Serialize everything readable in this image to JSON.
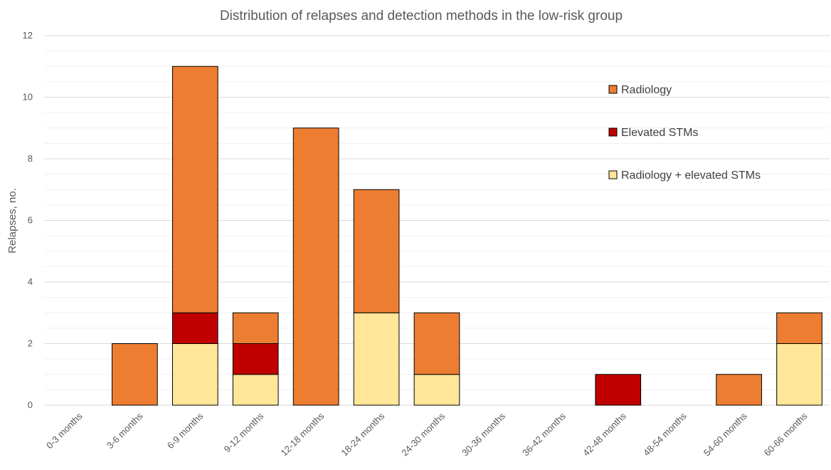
{
  "chart_data": {
    "type": "bar",
    "stacked": true,
    "title": "Distribution of relapses and detection methods in the low-risk group",
    "xlabel": "",
    "ylabel": "Relapses, no.",
    "ylim": [
      0,
      12
    ],
    "yticks": [
      0,
      2,
      4,
      6,
      8,
      10,
      12
    ],
    "grid": true,
    "legend_position": "top-right",
    "categories": [
      "0-3 months",
      "3-6 months",
      "6-9 months",
      "9-12 months",
      "12-18 months",
      "18-24 months",
      "24-30 months",
      "30-36 months",
      "36-42 months",
      "42-48 months",
      "48-54 months",
      "54-60 months",
      "60-66 months"
    ],
    "series": [
      {
        "name": "Radiology + elevated STMs",
        "color": "#FFE699",
        "values": [
          0,
          0,
          2,
          1,
          0,
          3,
          1,
          0,
          0,
          0,
          0,
          0,
          2
        ]
      },
      {
        "name": "Elevated STMs",
        "color": "#C00000",
        "values": [
          0,
          0,
          1,
          1,
          0,
          0,
          0,
          0,
          0,
          1,
          0,
          0,
          0
        ]
      },
      {
        "name": "Radiology",
        "color": "#ED7D31",
        "values": [
          0,
          2,
          8,
          1,
          9,
          4,
          2,
          0,
          0,
          0,
          0,
          1,
          1
        ]
      }
    ],
    "legend_order": [
      "Radiology",
      "Elevated STMs",
      "Radiology + elevated STMs"
    ]
  }
}
